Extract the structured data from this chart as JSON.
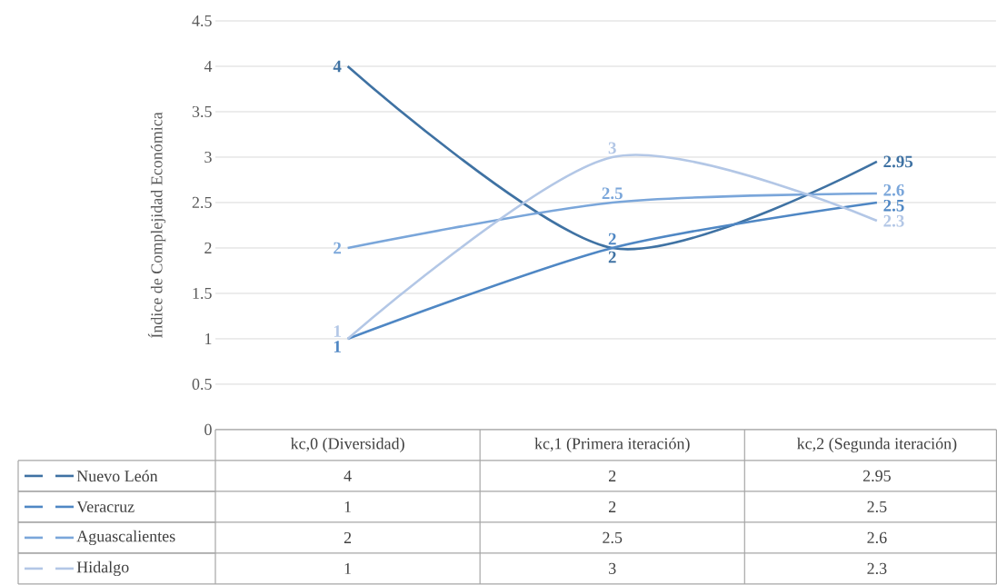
{
  "chart_data": {
    "type": "line",
    "ylabel": "Índice de Complejidad Económica",
    "categories": [
      "kc,0 (Diversidad)",
      "kc,1 (Primera iteración)",
      "kc,2 (Segunda iteración)"
    ],
    "series": [
      {
        "name": "Nuevo León",
        "color": "#3f72a3",
        "values": [
          4,
          2,
          2.95
        ],
        "value_labels": [
          "4",
          "2",
          "2.95"
        ]
      },
      {
        "name": "Veracruz",
        "color": "#4f87c4",
        "values": [
          1,
          2,
          2.5
        ],
        "value_labels": [
          "1",
          "2",
          "2.5"
        ]
      },
      {
        "name": "Aguascalientes",
        "color": "#7aa6da",
        "values": [
          2,
          2.5,
          2.6
        ],
        "value_labels": [
          "2",
          "2.5",
          "2.6"
        ]
      },
      {
        "name": "Hidalgo",
        "color": "#b3c7e6",
        "values": [
          1,
          3,
          2.3
        ],
        "value_labels": [
          "1",
          "3",
          "2.3"
        ]
      }
    ],
    "ylim": [
      0,
      4.5
    ],
    "yticks": [
      0,
      0.5,
      1,
      1.5,
      2,
      2.5,
      3,
      3.5,
      4,
      4.5
    ],
    "grid": "y",
    "legend": "bottom",
    "data_labels": true,
    "line_style": "solid",
    "marker": "none"
  }
}
